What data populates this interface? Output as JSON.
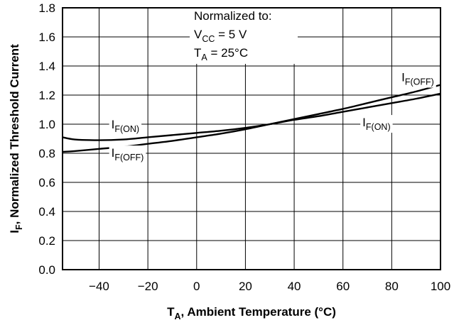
{
  "chart_data": {
    "type": "line",
    "title": "",
    "xlabel": {
      "main": "T",
      "sub": "A",
      "rest": ", Ambient Temperature (°C)"
    },
    "ylabel": {
      "main": "I",
      "sub": "F",
      "rest": ", Normalized Threshold Current"
    },
    "xlim": [
      -55,
      100
    ],
    "ylim": [
      0.0,
      1.8
    ],
    "x_ticks": [
      "−40",
      "−20",
      "0",
      "20",
      "40",
      "60",
      "80",
      "100"
    ],
    "x_tick_values": [
      -40,
      -20,
      0,
      20,
      40,
      60,
      80,
      100
    ],
    "y_ticks": [
      "0.0",
      "0.2",
      "0.4",
      "0.6",
      "0.8",
      "1.0",
      "1.2",
      "1.4",
      "1.6",
      "1.8"
    ],
    "y_tick_values": [
      0.0,
      0.2,
      0.4,
      0.6,
      0.8,
      1.0,
      1.2,
      1.4,
      1.6,
      1.8
    ],
    "grid": true,
    "series": [
      {
        "name": "IF(ON)",
        "x": [
          -55,
          -50,
          -40,
          -30,
          -20,
          -10,
          0,
          10,
          20,
          30,
          40,
          50,
          60,
          70,
          80,
          90,
          100
        ],
        "y": [
          0.91,
          0.895,
          0.89,
          0.895,
          0.91,
          0.925,
          0.94,
          0.955,
          0.975,
          1.0,
          1.03,
          1.055,
          1.085,
          1.115,
          1.145,
          1.175,
          1.21
        ]
      },
      {
        "name": "IF(OFF)",
        "x": [
          -55,
          -50,
          -40,
          -30,
          -20,
          -10,
          0,
          10,
          20,
          30,
          40,
          50,
          60,
          70,
          80,
          90,
          100
        ],
        "y": [
          0.81,
          0.815,
          0.83,
          0.845,
          0.865,
          0.885,
          0.91,
          0.935,
          0.965,
          1.0,
          1.035,
          1.07,
          1.105,
          1.145,
          1.185,
          1.225,
          1.27
        ]
      }
    ],
    "annotations": {
      "normalized_line1": "Normalized to:",
      "normalized_line2": {
        "main": "V",
        "sub": "CC",
        "rest": " = 5 V"
      },
      "normalized_line3": {
        "main": "T",
        "sub": "A",
        "rest": " = 25°C"
      },
      "series_labels": [
        {
          "main": "I",
          "sub": "F(ON)",
          "x": -35,
          "y": 0.97
        },
        {
          "main": "I",
          "sub": "F(OFF)",
          "x": -35,
          "y": 0.775
        },
        {
          "main": "I",
          "sub": "F(OFF)",
          "x": 84,
          "y": 1.295
        },
        {
          "main": "I",
          "sub": "F(ON)",
          "x": 68,
          "y": 0.985
        }
      ]
    }
  }
}
